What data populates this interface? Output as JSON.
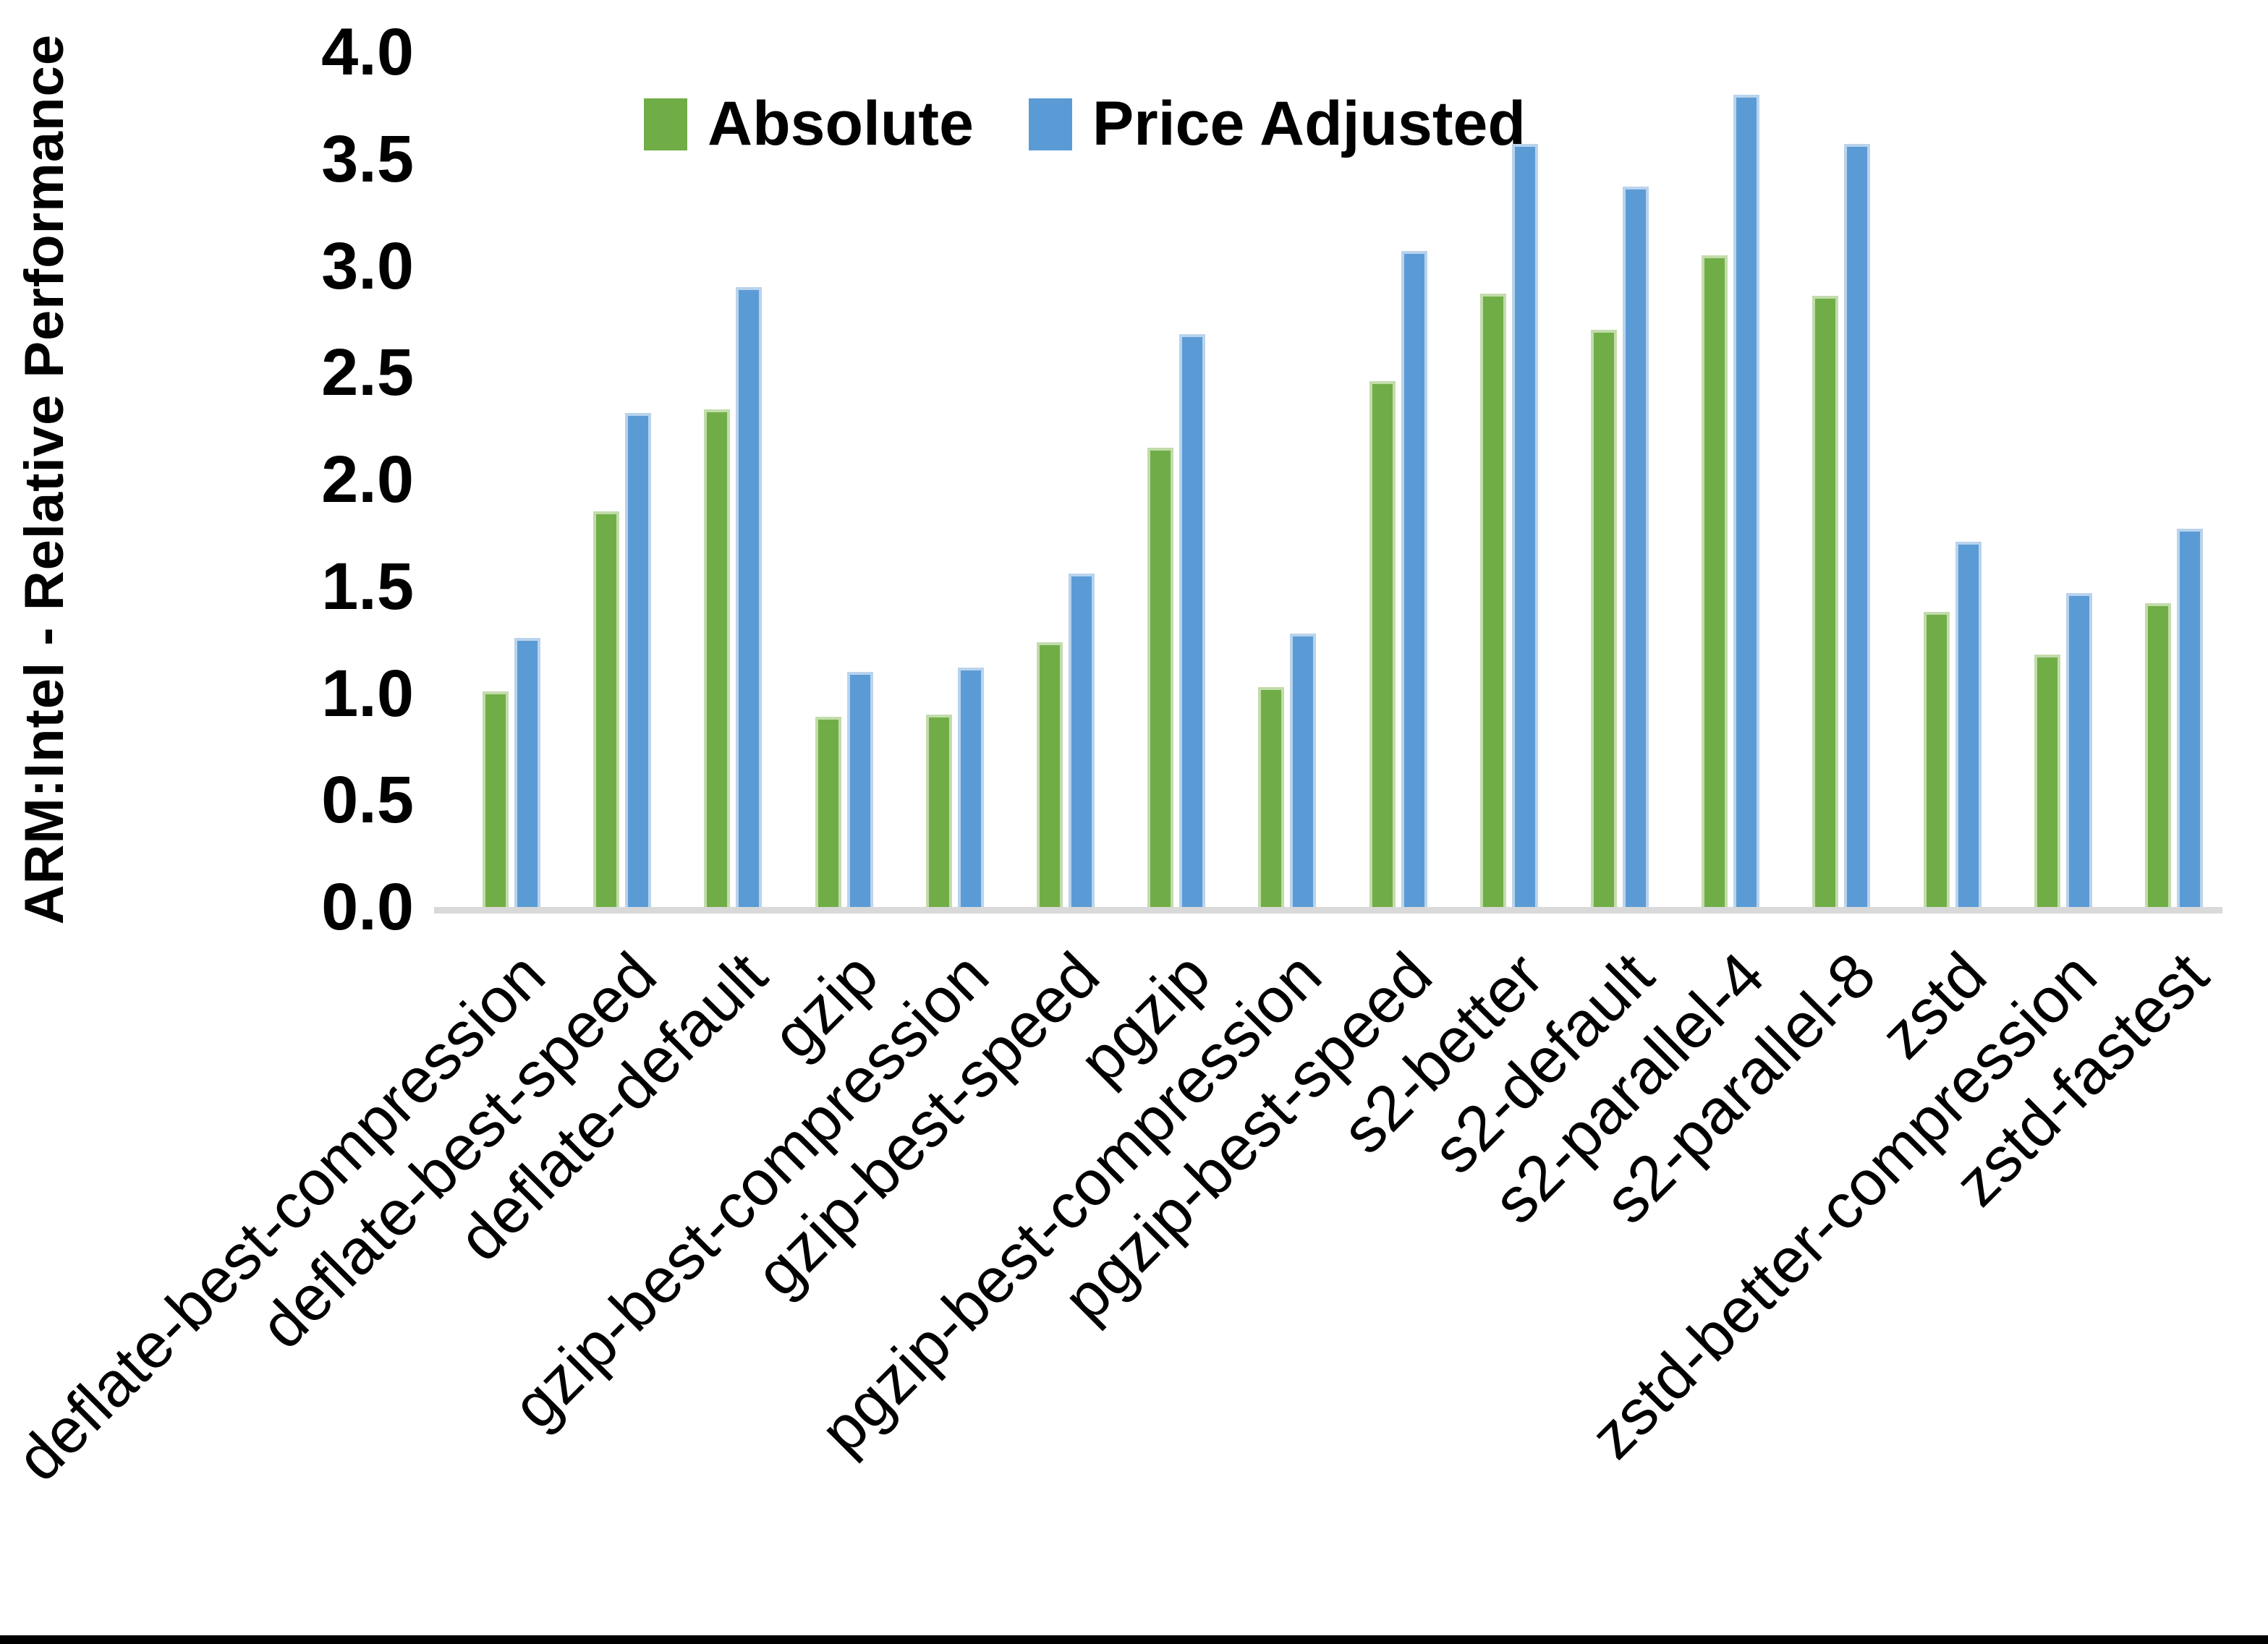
{
  "chart_data": {
    "type": "bar",
    "title": "",
    "ylabel": "ARM:Intel - Relative Performance",
    "xlabel": "",
    "ylim": [
      0.0,
      4.0
    ],
    "ytick_labels": [
      "0.0",
      "0.5",
      "1.0",
      "1.5",
      "2.0",
      "2.5",
      "3.0",
      "3.5",
      "4.0"
    ],
    "grid": false,
    "legend_position": "top",
    "categories": [
      "deflate-best-compression",
      "deflate-best-speed",
      "deflate-default",
      "gzip",
      "gzip-best-compression",
      "gzip-best-speed",
      "pgzip",
      "pgzip-best-compression",
      "pgzip-best-speed",
      "s2-better",
      "s2-default",
      "s2-parallel-4",
      "s2-parallel-8",
      "zstd",
      "zstd-better-compression",
      "zstd-fastest"
    ],
    "series": [
      {
        "name": "Absolute",
        "color": "#70AD47",
        "values": [
          1.01,
          1.85,
          2.33,
          0.89,
          0.9,
          1.24,
          2.15,
          1.03,
          2.46,
          2.87,
          2.7,
          3.05,
          2.86,
          1.38,
          1.18,
          1.42
        ]
      },
      {
        "name": "Price Adjusted",
        "color": "#5B9BD5",
        "values": [
          1.26,
          2.31,
          2.9,
          1.1,
          1.12,
          1.56,
          2.68,
          1.28,
          3.07,
          3.57,
          3.37,
          3.8,
          3.57,
          1.71,
          1.47,
          1.77
        ]
      }
    ],
    "axis_line_color": "#D9D9D9",
    "text_color": "#000000"
  }
}
